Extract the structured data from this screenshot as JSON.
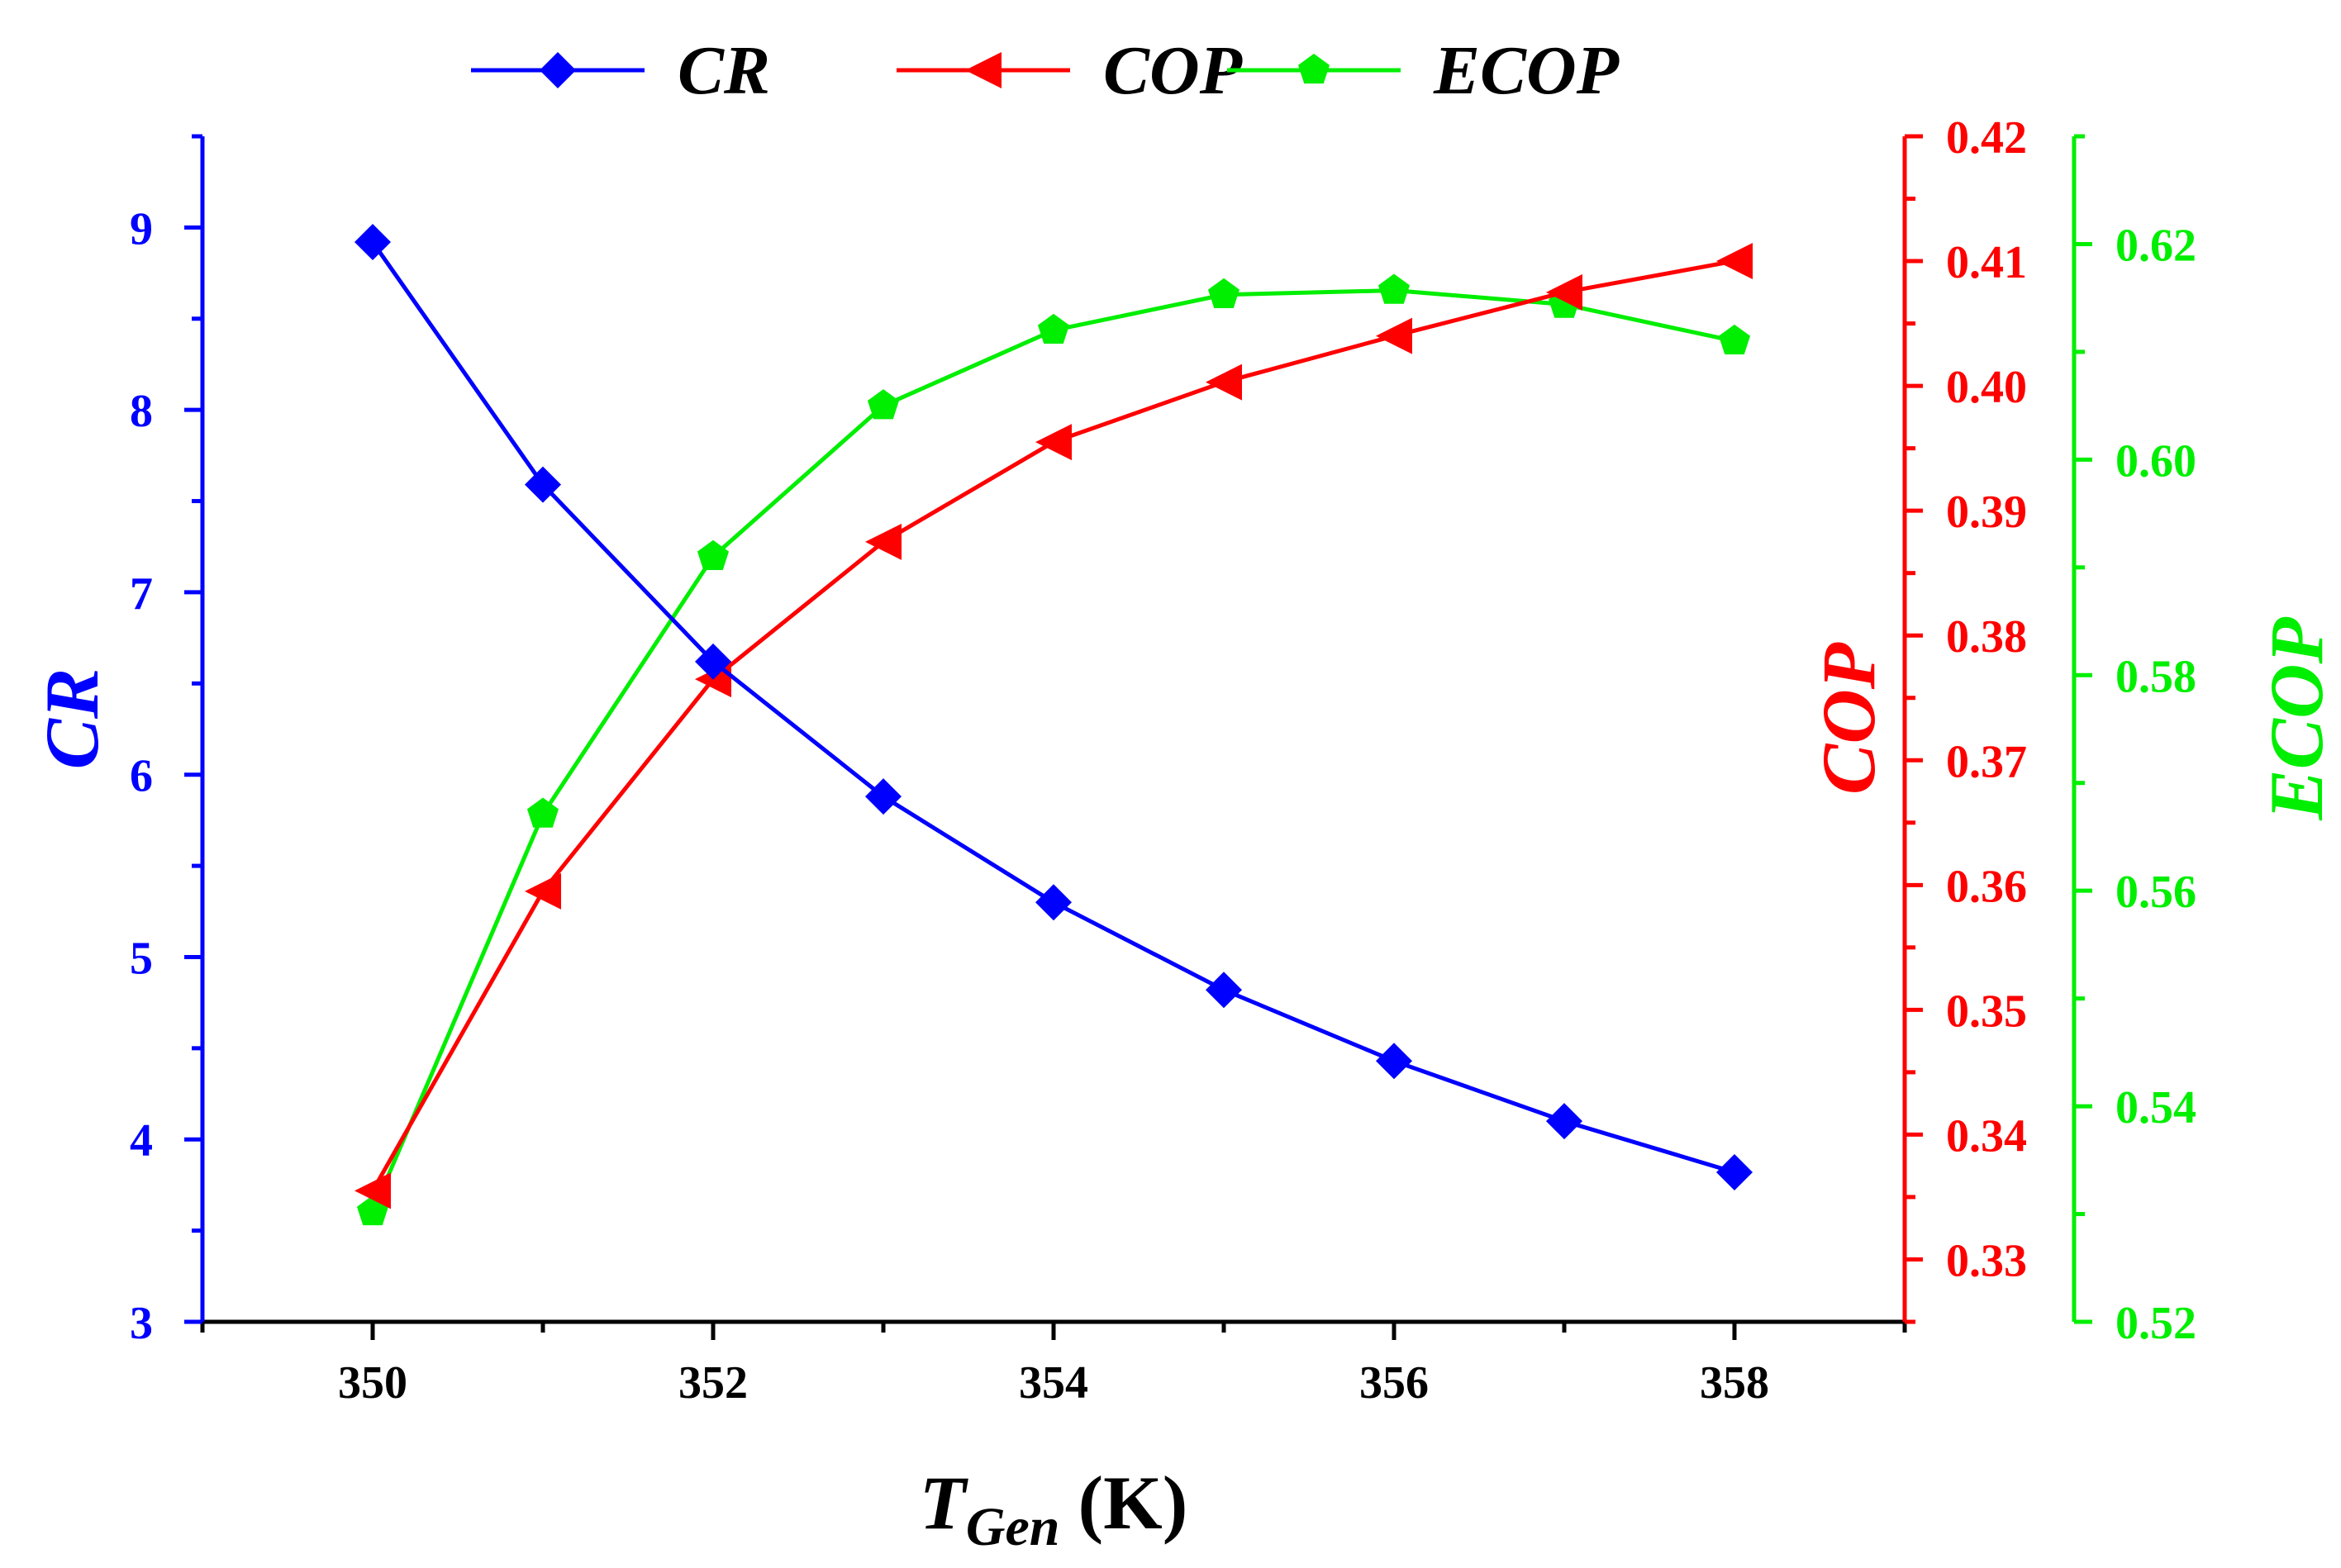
{
  "chart_data": {
    "type": "line",
    "x": [
      350,
      351,
      352,
      353,
      354,
      355,
      356,
      357,
      358
    ],
    "xlabel_main": "T",
    "xlabel_sub": "Gen",
    "xlabel_unit": "(K)",
    "xlim": [
      349,
      359
    ],
    "xticks": [
      350,
      352,
      354,
      356,
      358
    ],
    "xtick_labels": [
      "350",
      "352",
      "354",
      "356",
      "358"
    ],
    "grid": false,
    "legend_position": "top",
    "axes": {
      "left": {
        "label": "CR",
        "color": "#0000ff",
        "ylim": [
          3,
          9.5
        ],
        "ticks": [
          3,
          4,
          5,
          6,
          7,
          8,
          9
        ],
        "tick_labels": [
          "3",
          "4",
          "5",
          "6",
          "7",
          "8",
          "9"
        ]
      },
      "right1": {
        "label": "COP",
        "color": "#ff0000",
        "ylim": [
          0.325,
          0.42
        ],
        "ticks": [
          0.33,
          0.34,
          0.35,
          0.36,
          0.37,
          0.38,
          0.39,
          0.4,
          0.41,
          0.42
        ],
        "tick_labels": [
          "0.33",
          "0.34",
          "0.35",
          "0.36",
          "0.37",
          "0.38",
          "0.39",
          "0.40",
          "0.41",
          "0.42"
        ]
      },
      "right2": {
        "label": "ECOP",
        "color": "#00ee00",
        "ylim": [
          0.52,
          0.63
        ],
        "ticks": [
          0.52,
          0.54,
          0.56,
          0.58,
          0.6,
          0.62
        ],
        "tick_labels": [
          "0.52",
          "0.54",
          "0.56",
          "0.58",
          "0.60",
          "0.62"
        ]
      }
    },
    "series": [
      {
        "name": "CR",
        "axis": "left",
        "color": "#0000ff",
        "marker": "diamond",
        "values": [
          8.92,
          7.59,
          6.62,
          5.88,
          5.3,
          4.82,
          4.43,
          4.1,
          3.82
        ]
      },
      {
        "name": "COP",
        "axis": "right1",
        "color": "#ff0000",
        "marker": "triangle-left",
        "values": [
          0.3355,
          0.3595,
          0.3765,
          0.3875,
          0.3955,
          0.4003,
          0.404,
          0.4075,
          0.41
        ]
      },
      {
        "name": "ECOP",
        "axis": "right2",
        "color": "#00ee00",
        "marker": "pentagon",
        "values": [
          0.5302,
          0.5671,
          0.591,
          0.605,
          0.612,
          0.6153,
          0.6157,
          0.6144,
          0.611
        ]
      }
    ]
  }
}
